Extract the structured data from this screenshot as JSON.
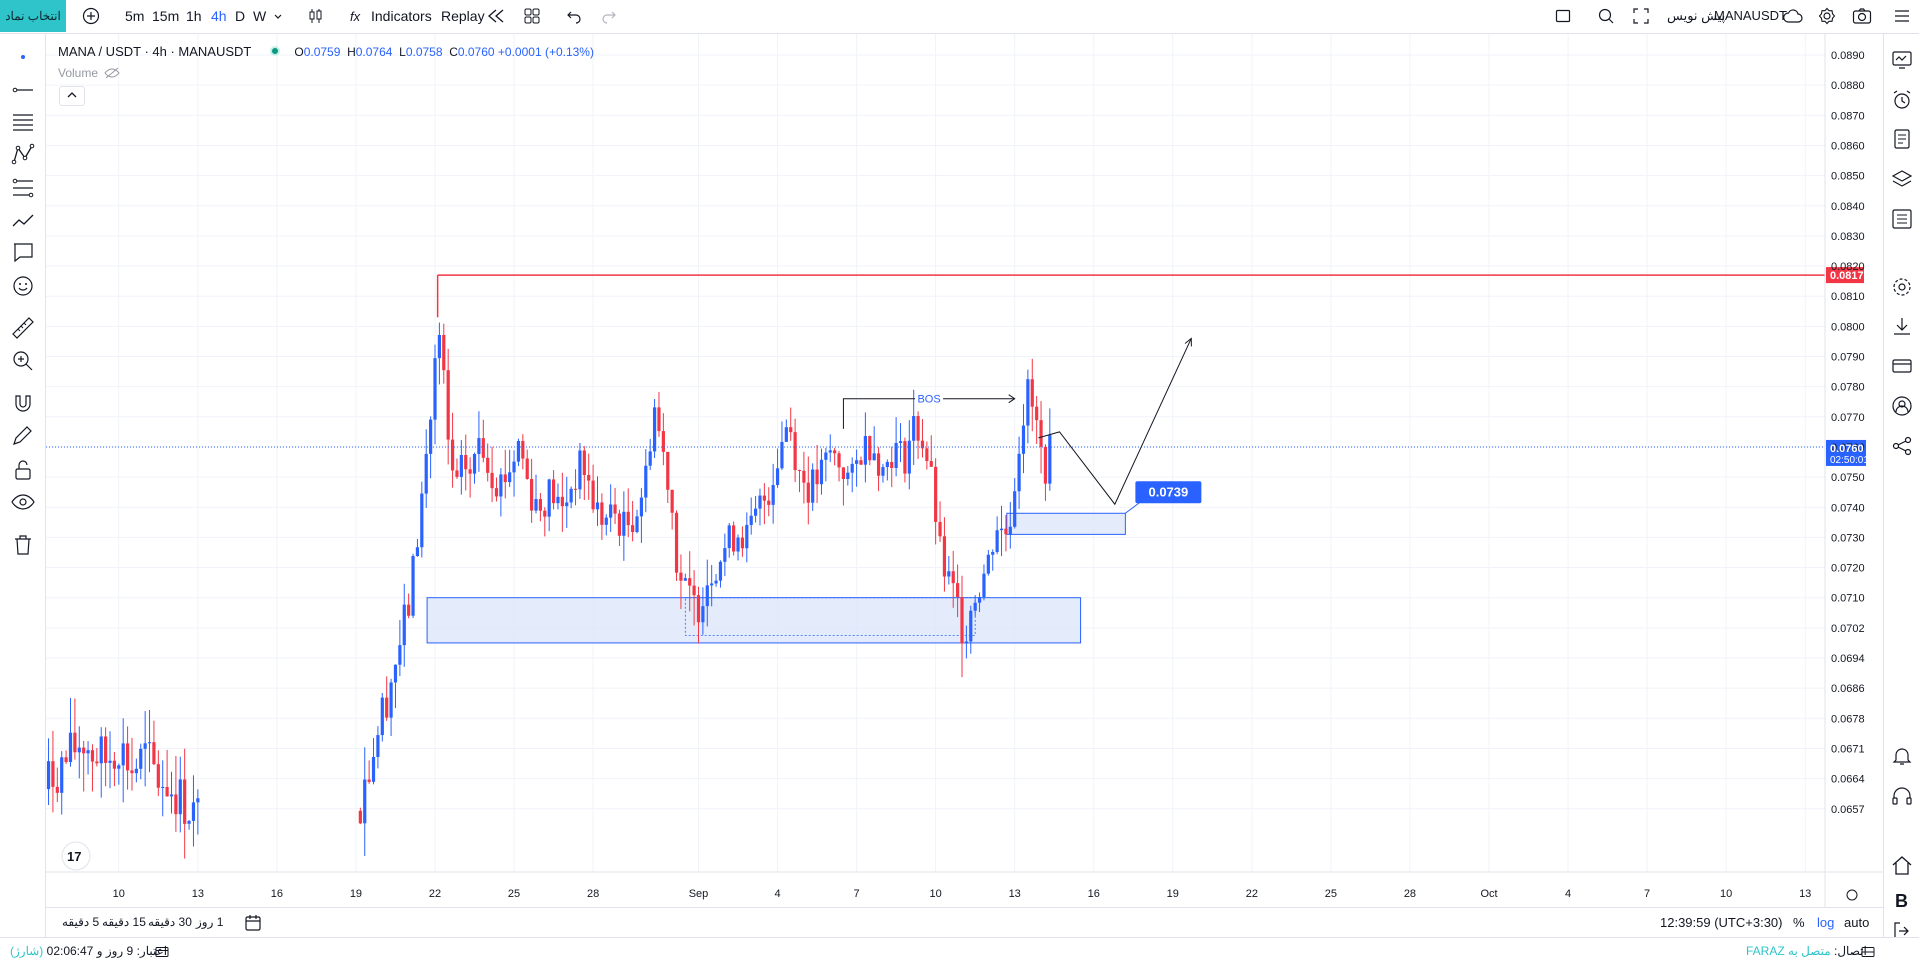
{
  "toolbar": {
    "symbol_button": "انتخاب نماد",
    "intervals": [
      "5m",
      "15m",
      "1h",
      "4h",
      "D",
      "W"
    ],
    "selected_interval": "4h",
    "indicators": "Indicators",
    "replay": "Replay",
    "symbol_name": "MANAUSDT",
    "draft": "پیش نویس"
  },
  "legend": {
    "title": "MANA / USDT · 4h · MANAUSDT",
    "o_label": "O",
    "o": "0.0759",
    "h_label": "H",
    "h": "0.0764",
    "l_label": "L",
    "l": "0.0758",
    "c_label": "C",
    "c": "0.0760",
    "change": "+0.0001 (+0.13%)",
    "volume": "Volume"
  },
  "bottom": {
    "ranges": [
      "5 دقیقه",
      "15 دقیقه",
      "30 دقیقه",
      "1 روز"
    ],
    "clock": "12:39:59 (UTC+3:30)",
    "percent": "%",
    "log": "log",
    "auto": "auto"
  },
  "status": {
    "credit": "اعتبار: 9 روز و 02:06:47",
    "recharge": "(شارژ)",
    "connection_label": "اتصال:",
    "connection_value": "متصل به FARAZ"
  },
  "colors": {
    "up": "#2962ff",
    "down": "#f23645",
    "resistance": "#f23645",
    "zone_fill": "#dbe6fb",
    "zone_border": "#2962ff",
    "accent": "#2ec4c9"
  },
  "chart_data": {
    "type": "candlestick",
    "symbol": "MANA / USDT",
    "interval": "4h",
    "y_ticks": [
      0.089,
      0.088,
      0.087,
      0.086,
      0.085,
      0.084,
      0.083,
      0.082,
      0.081,
      0.08,
      0.079,
      0.078,
      0.077,
      0.076,
      0.075,
      0.074,
      0.073,
      0.072,
      0.071,
      0.0702,
      0.0694,
      0.0686,
      0.0678,
      0.0671,
      0.0664,
      0.0657
    ],
    "y_tick_labels": [
      "0.0890",
      "0.0880",
      "0.0870",
      "0.0860",
      "0.0850",
      "0.0840",
      "0.0830",
      "0.0820",
      "0.0810",
      "0.0800",
      "0.0790",
      "0.0780",
      "0.0770",
      "0.0760",
      "0.0750",
      "0.0740",
      "0.0730",
      "0.0720",
      "0.0710",
      "0.0702",
      "0.0694",
      "0.0686",
      "0.0678",
      "0.0671",
      "0.0664",
      "0.0657"
    ],
    "x_tick_labels": [
      "10",
      "13",
      "16",
      "19",
      "22",
      "25",
      "28",
      "Sep",
      "4",
      "7",
      "10",
      "13",
      "16",
      "19",
      "22",
      "25",
      "28",
      "Oct",
      "4",
      "7",
      "10",
      "13"
    ],
    "x_tick_day_index": [
      -12,
      -9,
      -6,
      -3,
      0,
      3,
      6,
      10,
      13,
      16,
      19,
      22,
      25,
      28,
      31,
      34,
      37,
      40,
      43,
      46,
      49,
      52
    ],
    "candles_day_index_range": [
      -15,
      23.5
    ],
    "close_path": [
      [
        -15,
        0.0661
      ],
      [
        -14.6,
        0.0664
      ],
      [
        -14,
        0.0668
      ],
      [
        -13.4,
        0.0673
      ],
      [
        -13,
        0.067
      ],
      [
        -12.5,
        0.0668
      ],
      [
        -12,
        0.0672
      ],
      [
        -11.5,
        0.0666
      ],
      [
        -11,
        0.0669
      ],
      [
        -10.5,
        0.0664
      ],
      [
        -10,
        0.0662
      ],
      [
        -9.5,
        0.0658
      ],
      [
        -9,
        0.0655
      ],
      [
        -3,
        0.0655
      ],
      [
        -2.6,
        0.0665
      ],
      [
        -2.2,
        0.0675
      ],
      [
        -1.8,
        0.0685
      ],
      [
        -1.4,
        0.0696
      ],
      [
        -1,
        0.0708
      ],
      [
        -0.6,
        0.0735
      ],
      [
        -0.3,
        0.076
      ],
      [
        -0.1,
        0.0775
      ],
      [
        0.1,
        0.08
      ],
      [
        0.3,
        0.0785
      ],
      [
        0.5,
        0.076
      ],
      [
        0.8,
        0.0745
      ],
      [
        1.1,
        0.0755
      ],
      [
        1.4,
        0.075
      ],
      [
        1.7,
        0.0765
      ],
      [
        2,
        0.0755
      ],
      [
        2.4,
        0.0748
      ],
      [
        2.8,
        0.0752
      ],
      [
        3.2,
        0.0762
      ],
      [
        3.6,
        0.0745
      ],
      [
        4,
        0.074
      ],
      [
        4.4,
        0.0746
      ],
      [
        4.8,
        0.0738
      ],
      [
        5.2,
        0.0748
      ],
      [
        5.6,
        0.0755
      ],
      [
        6,
        0.0742
      ],
      [
        6.4,
        0.0735
      ],
      [
        6.8,
        0.0738
      ],
      [
        7.2,
        0.0733
      ],
      [
        7.6,
        0.0738
      ],
      [
        8,
        0.075
      ],
      [
        8.3,
        0.0775
      ],
      [
        8.6,
        0.076
      ],
      [
        8.9,
        0.0748
      ],
      [
        9.2,
        0.072
      ],
      [
        9.5,
        0.0712
      ],
      [
        9.9,
        0.0707
      ],
      [
        10.3,
        0.0716
      ],
      [
        10.7,
        0.0722
      ],
      [
        11.1,
        0.0728
      ],
      [
        11.5,
        0.0732
      ],
      [
        11.9,
        0.073
      ],
      [
        12.3,
        0.074
      ],
      [
        12.7,
        0.0746
      ],
      [
        13.1,
        0.076
      ],
      [
        13.4,
        0.077
      ],
      [
        13.8,
        0.0752
      ],
      [
        14.2,
        0.0746
      ],
      [
        14.6,
        0.075
      ],
      [
        15,
        0.0758
      ],
      [
        15.4,
        0.0754
      ],
      [
        15.8,
        0.0748
      ],
      [
        16.2,
        0.076
      ],
      [
        16.6,
        0.0762
      ],
      [
        17,
        0.0752
      ],
      [
        17.4,
        0.076
      ],
      [
        17.8,
        0.0756
      ],
      [
        18.2,
        0.0768
      ],
      [
        18.6,
        0.076
      ],
      [
        18.9,
        0.0745
      ],
      [
        19.2,
        0.0722
      ],
      [
        19.5,
        0.0715
      ],
      [
        19.8,
        0.0708
      ],
      [
        20.1,
        0.0701
      ],
      [
        20.4,
        0.071
      ],
      [
        20.7,
        0.0715
      ],
      [
        21,
        0.0722
      ],
      [
        21.3,
        0.0735
      ],
      [
        21.6,
        0.073
      ],
      [
        21.9,
        0.074
      ],
      [
        22.2,
        0.0765
      ],
      [
        22.5,
        0.0778
      ],
      [
        22.8,
        0.0768
      ],
      [
        23.1,
        0.0752
      ],
      [
        23.4,
        0.076
      ]
    ],
    "resistance_line": {
      "value": 0.0817,
      "label": "0.0817"
    },
    "current_price": {
      "value": 0.076,
      "label": "0.0760",
      "countdown": "02:50:01"
    },
    "demand_zone_large": {
      "from_day": -0.3,
      "to_day": 24.5,
      "top": 0.071,
      "bottom": 0.0698
    },
    "demand_zone_inner": {
      "from_day": 9.5,
      "to_day": 20.5,
      "top": 0.071,
      "bottom": 0.07
    },
    "demand_zone_small": {
      "from_day": 21.7,
      "to_day": 26.2,
      "top": 0.0738,
      "bottom": 0.0731
    },
    "zone_label": "0.0739",
    "bos": {
      "label": "BOS",
      "from_day": 15.5,
      "to_day": 22.0,
      "value": 0.0776
    },
    "projection": [
      [
        22.9,
        0.0763
      ],
      [
        23.7,
        0.0765
      ],
      [
        25.8,
        0.0741
      ],
      [
        28.7,
        0.0796
      ]
    ]
  }
}
